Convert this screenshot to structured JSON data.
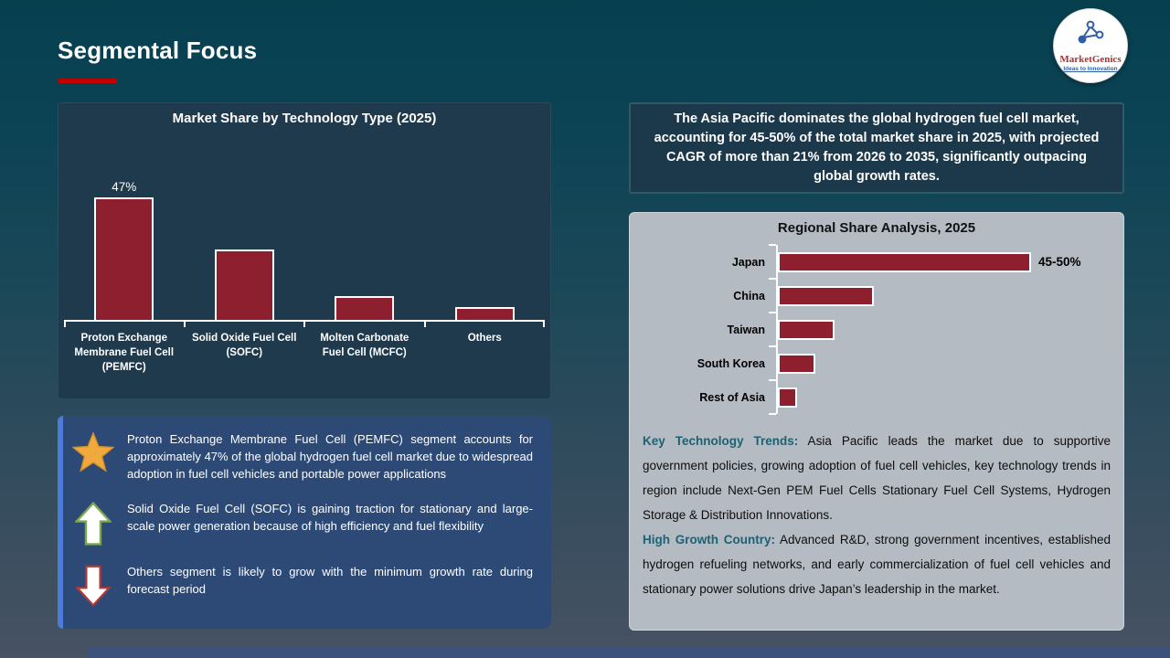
{
  "slide": {
    "title": "Segmental Focus",
    "logo": {
      "brand": "MarketGenics",
      "tagline": "Ideas to Innovation"
    }
  },
  "colors": {
    "bar_maroon": "#8E1F2E",
    "title_accent_red": "#C00000",
    "insight_box_blue": "#2D4A76",
    "insight_accent_blue": "#4A7CD8",
    "panel_dark": "#1F3A4C",
    "panel_gray": "#B5BBC3",
    "trend_lead_teal": "#1E6172",
    "star_gold": "#F0A93C",
    "up_arrow_green": "#7BA84E",
    "down_arrow_red": "#B03A3A"
  },
  "chart_data": [
    {
      "type": "bar",
      "title": "Market Share by Technology Type (2025)",
      "categories": [
        "Proton Exchange Membrane Fuel Cell (PEMFC)",
        "Solid Oxide Fuel Cell (SOFC)",
        "Molten Carbonate Fuel Cell (MCFC)",
        "Others"
      ],
      "values": [
        47,
        27,
        9,
        5
      ],
      "data_labels": [
        "47%",
        "",
        "",
        ""
      ],
      "bar_color": "#8E1F2E",
      "xlabel": "",
      "ylabel": "",
      "ylim": [
        0,
        70
      ],
      "grid": false,
      "legend": "none",
      "note": "only the PEMFC bar carries a data label"
    },
    {
      "type": "bar",
      "orientation": "horizontal",
      "title": "Regional Share Analysis, 2025",
      "categories": [
        "Japan",
        "China",
        "Taiwan",
        "South Korea",
        "Rest of Asia"
      ],
      "values": [
        47.5,
        18,
        10.6,
        7,
        3.6
      ],
      "data_labels": [
        "45-50%",
        "",
        "",
        "",
        ""
      ],
      "bar_color": "#8E1F2E",
      "xlabel": "",
      "ylabel": "",
      "xlim": [
        0,
        90
      ],
      "grid": false,
      "legend": "none",
      "note": "only the Japan bar carries a data label"
    }
  ],
  "insights": {
    "items": [
      {
        "icon": "star",
        "text": "Proton Exchange Membrane Fuel Cell (PEMFC) segment accounts for approximately 47% of the global hydrogen fuel cell market due to widespread adoption in fuel cell vehicles and portable power applications"
      },
      {
        "icon": "up-arrow",
        "text": "Solid Oxide Fuel Cell (SOFC) is gaining traction for stationary and large-scale power generation because of high efficiency and fuel flexibility"
      },
      {
        "icon": "down-arrow",
        "text": "Others segment is likely to grow with the minimum growth rate during forecast period"
      }
    ]
  },
  "callout": {
    "text": "The Asia Pacific dominates the global hydrogen fuel cell market, accounting for 45-50% of the total market share in 2025, with projected CAGR of more than 21% from 2026 to 2035, significantly outpacing global growth rates."
  },
  "trends": [
    {
      "lead": "Key Technology Trends:",
      "text": " Asia Pacific leads the market due to supportive government policies, growing adoption of fuel cell vehicles, key technology trends in region include Next-Gen PEM Fuel Cells Stationary Fuel Cell Systems, Hydrogen Storage & Distribution Innovations."
    },
    {
      "lead": "High Growth Country:",
      "text": " Advanced R&D, strong government incentives, established hydrogen refueling networks, and early commercialization of fuel cell vehicles and stationary power solutions drive Japan’s leadership in the market."
    }
  ]
}
